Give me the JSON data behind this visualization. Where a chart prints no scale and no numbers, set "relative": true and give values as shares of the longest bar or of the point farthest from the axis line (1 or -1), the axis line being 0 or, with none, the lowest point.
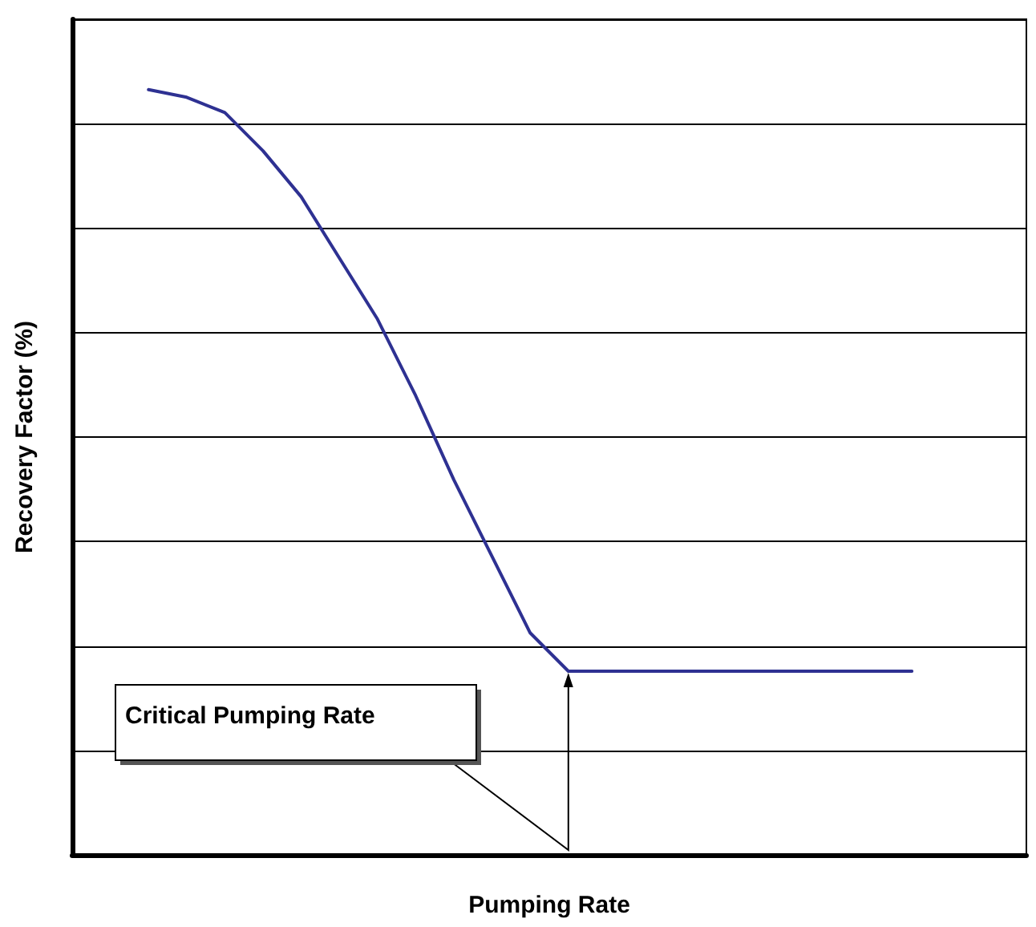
{
  "chart_data": {
    "type": "line",
    "relative": true,
    "xlabel": "Pumping Rate",
    "ylabel": "Recovery Factor (%)",
    "annotations": [
      "Critical Pumping Rate"
    ],
    "grid": "y",
    "marker": "none",
    "line_style": "solid",
    "categories": [
      null,
      null,
      null,
      null,
      null,
      null,
      null,
      null,
      null,
      null,
      null,
      null,
      null,
      null,
      null,
      null,
      null,
      null,
      null,
      null,
      null,
      null,
      null,
      null,
      null,
      null
    ],
    "series": [
      {
        "color": "#2e3192",
        "values": [
          null,
          null,
          1.0,
          0.99,
          0.97,
          0.92,
          0.86,
          0.78,
          0.7,
          0.6,
          0.49,
          0.39,
          0.29,
          0.24,
          0.24,
          0.24,
          0.24,
          0.24,
          0.24,
          0.24,
          0.24,
          0.24,
          0.24,
          null,
          null,
          null
        ]
      }
    ]
  }
}
